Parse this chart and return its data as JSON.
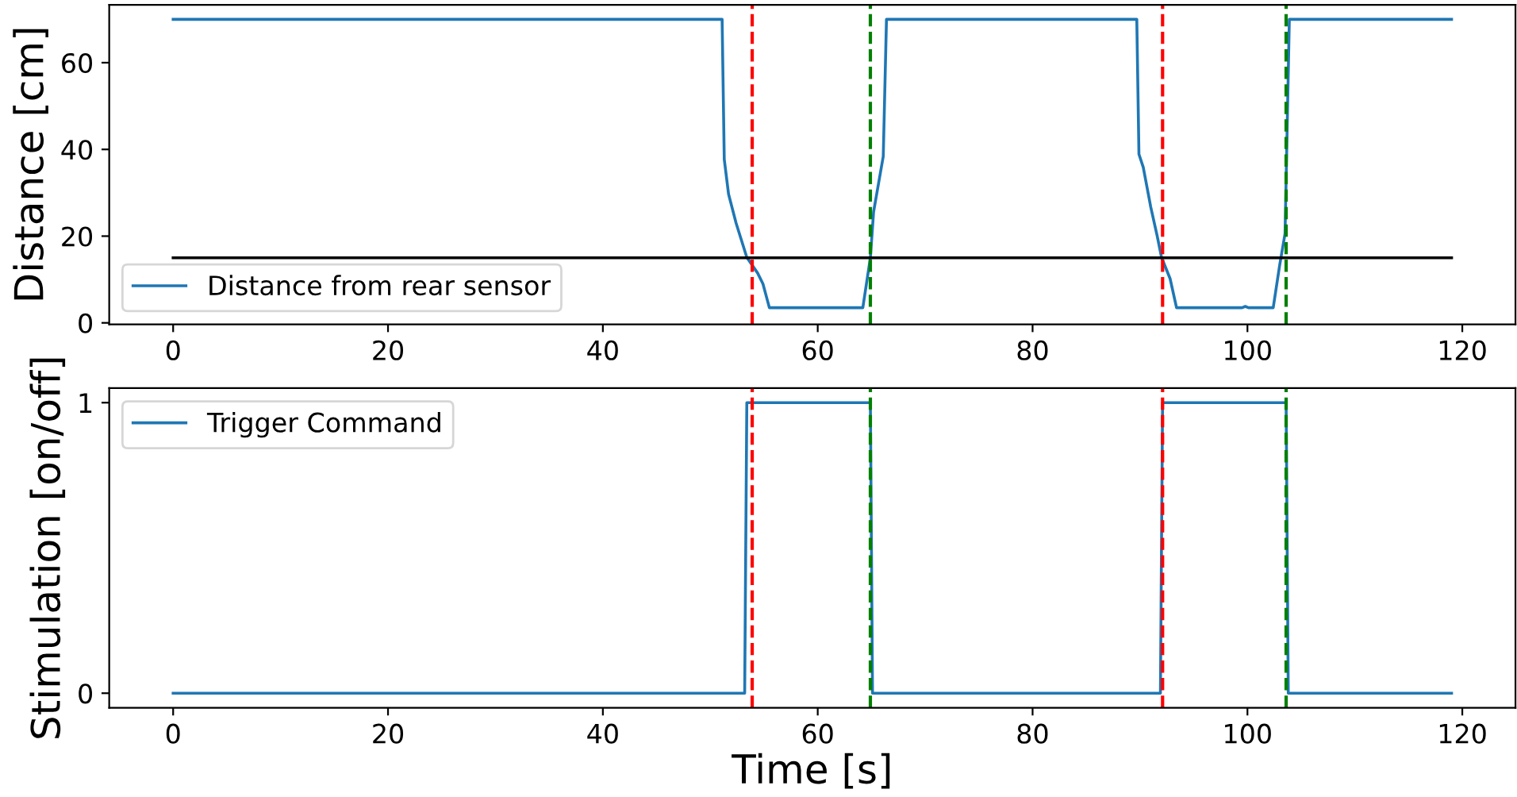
{
  "chart_data": [
    {
      "type": "line",
      "ylabel": "Distance [cm]",
      "xlim": [
        -5.95,
        124.95
      ],
      "ylim": [
        -0.35,
        73.35
      ],
      "xticks": [
        0,
        20,
        40,
        60,
        80,
        100,
        120
      ],
      "yticks": [
        0,
        20,
        40,
        60
      ],
      "legend": "bottom left",
      "grid": false,
      "line_style": "solid",
      "series": [
        {
          "name": "Distance from rear sensor",
          "color": "#1f77b4",
          "x": [
            0,
            51.1,
            51.3,
            51.7,
            52.4,
            53.4,
            54.4,
            54.9,
            55.5,
            64.2,
            64.9,
            65.2,
            66.1,
            66.4,
            89.7,
            89.9,
            90.3,
            91.0,
            91.6,
            92.0,
            92.8,
            93.4,
            99.5,
            99.8,
            100.1,
            102.4,
            103.0,
            103.5,
            103.9,
            119
          ],
          "values": [
            70,
            70,
            37.7,
            29.7,
            23,
            15.1,
            11.5,
            9,
            3.5,
            3.5,
            15,
            25.6,
            38.4,
            70,
            70,
            38.9,
            35.9,
            26.7,
            20,
            15.1,
            10.2,
            3.5,
            3.5,
            3.8,
            3.5,
            3.5,
            13.3,
            20.6,
            70,
            70
          ]
        },
        {
          "color": "#000000",
          "x": [
            0,
            119
          ],
          "values": [
            15,
            15
          ]
        }
      ],
      "ref_lines": [
        {
          "axis": "x",
          "value": 53.9,
          "color": "#ff0000",
          "line_style": "dashed"
        },
        {
          "axis": "x",
          "value": 64.9,
          "color": "#008000",
          "line_style": "dashed"
        },
        {
          "axis": "x",
          "value": 92.1,
          "color": "#ff0000",
          "line_style": "dashed"
        },
        {
          "axis": "x",
          "value": 103.6,
          "color": "#008000",
          "line_style": "dashed"
        }
      ]
    },
    {
      "type": "line",
      "xlabel": "Time [s]",
      "ylabel": "Stimulation [on/off]",
      "xlim": [
        -5.95,
        124.95
      ],
      "ylim": [
        -0.05,
        1.05
      ],
      "xticks": [
        0,
        20,
        40,
        60,
        80,
        100,
        120
      ],
      "yticks": [
        0,
        1
      ],
      "legend": "top left",
      "grid": false,
      "line_style": "solid",
      "series": [
        {
          "name": "Trigger Command",
          "color": "#1f77b4",
          "x": [
            0,
            53.2,
            53.4,
            64.9,
            65.1,
            91.9,
            92.1,
            103.6,
            103.8,
            119
          ],
          "values": [
            0,
            0,
            1,
            1,
            0,
            0,
            1,
            1,
            0,
            0
          ]
        }
      ],
      "ref_lines": [
        {
          "axis": "x",
          "value": 53.9,
          "color": "#ff0000",
          "line_style": "dashed"
        },
        {
          "axis": "x",
          "value": 64.9,
          "color": "#008000",
          "line_style": "dashed"
        },
        {
          "axis": "x",
          "value": 92.1,
          "color": "#ff0000",
          "line_style": "dashed"
        },
        {
          "axis": "x",
          "value": 103.6,
          "color": "#008000",
          "line_style": "dashed"
        }
      ]
    }
  ]
}
